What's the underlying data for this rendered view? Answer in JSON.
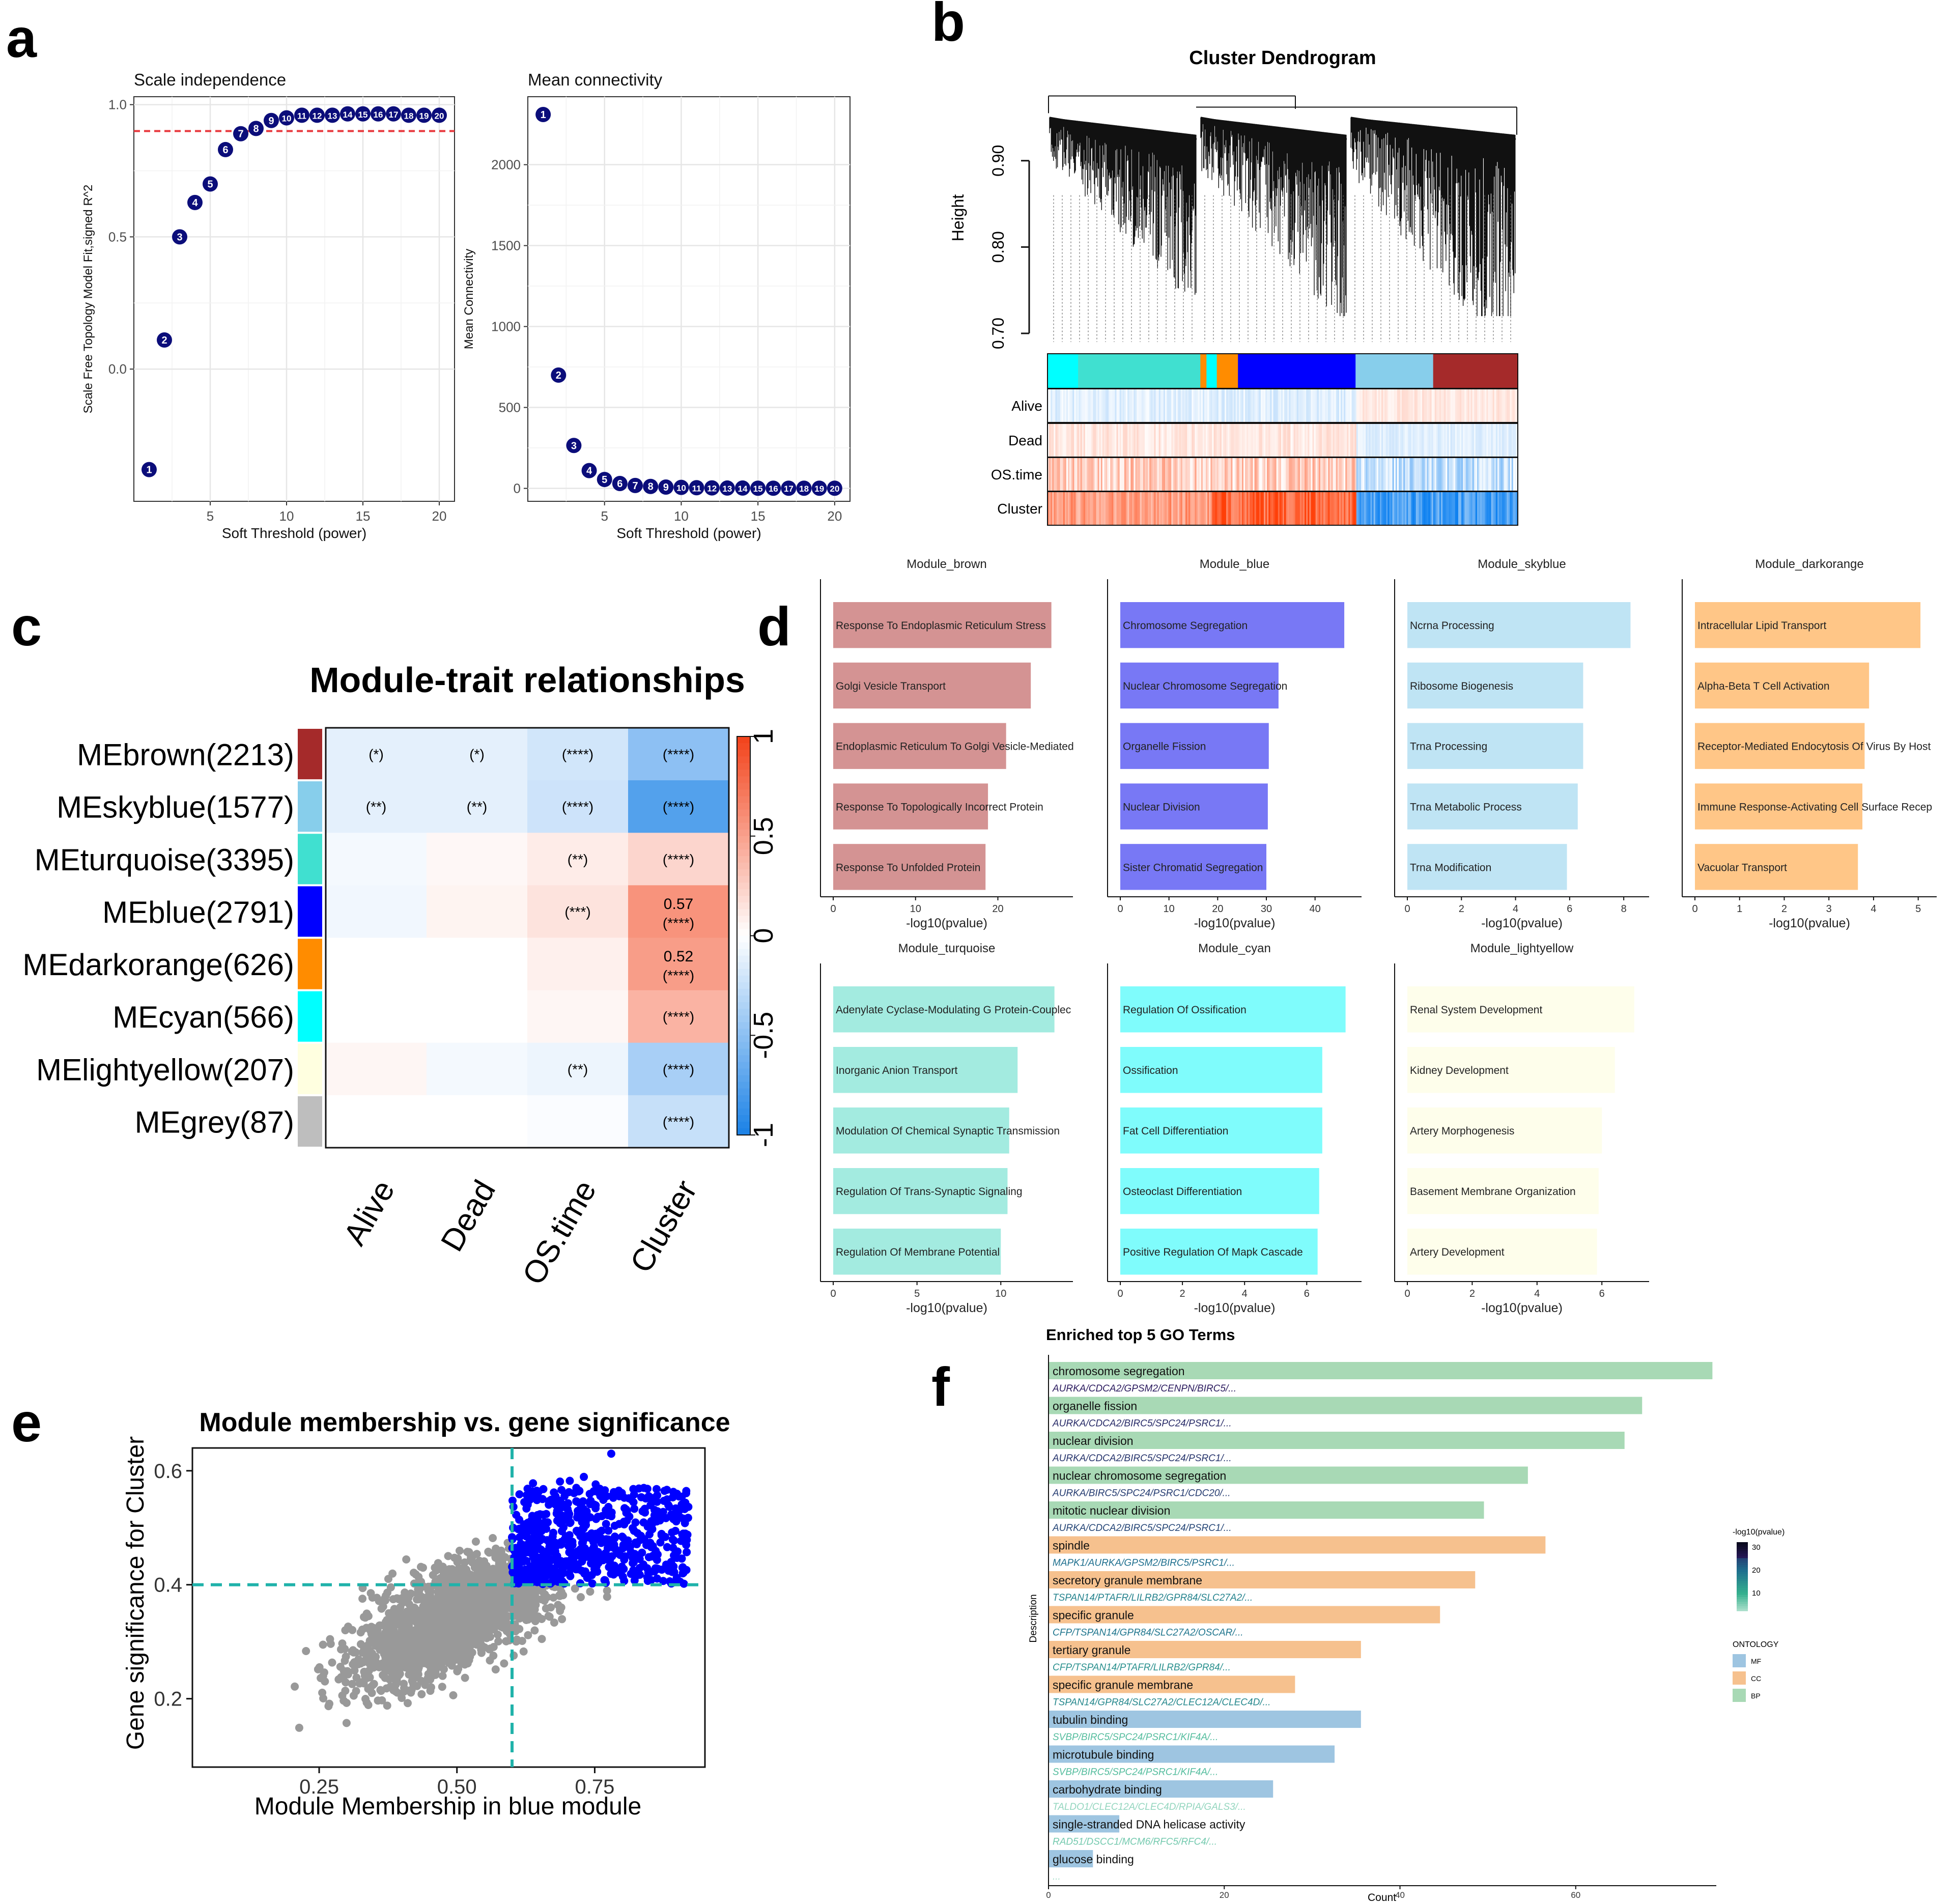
{
  "panel_letters": [
    "a",
    "b",
    "c",
    "d",
    "e",
    "f"
  ],
  "chart_data": [
    {
      "id": "a1",
      "type": "scatter",
      "title": "Scale independence",
      "xlabel": "Soft Threshold (power)",
      "ylabel": "Scale Free Topology Model Fit,signed R^2",
      "xlim": [
        0,
        21
      ],
      "ylim": [
        -0.5,
        1.03
      ],
      "xticks": [
        5,
        10,
        15,
        20
      ],
      "yticks": [
        0.0,
        0.5,
        1.0
      ],
      "ytick_labels": [
        "0.0",
        "0.5",
        "1.0"
      ],
      "hline": 0.9,
      "point_color": "#0b0d7a",
      "x": [
        1,
        2,
        3,
        4,
        5,
        6,
        7,
        8,
        9,
        10,
        11,
        12,
        13,
        14,
        15,
        16,
        17,
        18,
        19,
        20
      ],
      "y": [
        -0.38,
        0.11,
        0.5,
        0.63,
        0.7,
        0.83,
        0.89,
        0.91,
        0.94,
        0.95,
        0.96,
        0.96,
        0.96,
        0.965,
        0.965,
        0.965,
        0.965,
        0.96,
        0.96,
        0.96
      ],
      "labels": [
        "1",
        "2",
        "3",
        "4",
        "5",
        "6",
        "7",
        "8",
        "9",
        "10",
        "11",
        "12",
        "13",
        "14",
        "15",
        "16",
        "17",
        "18",
        "19",
        "20"
      ]
    },
    {
      "id": "a2",
      "type": "scatter",
      "title": "Mean connectivity",
      "xlabel": "Soft Threshold (power)",
      "ylabel": "Mean Connectivity",
      "xlim": [
        0,
        21
      ],
      "ylim": [
        -80,
        2420
      ],
      "xticks": [
        5,
        10,
        15,
        20
      ],
      "yticks": [
        0,
        500,
        1000,
        1500,
        2000
      ],
      "point_color": "#0b0d7a",
      "x": [
        1,
        2,
        3,
        4,
        5,
        6,
        7,
        8,
        9,
        10,
        11,
        12,
        13,
        14,
        15,
        16,
        17,
        18,
        19,
        20
      ],
      "y": [
        2310,
        700,
        265,
        110,
        55,
        30,
        18,
        12,
        8,
        6,
        4,
        3,
        2,
        2,
        1,
        1,
        1,
        1,
        1,
        1
      ],
      "labels": [
        "1",
        "2",
        "3",
        "4",
        "5",
        "6",
        "7",
        "8",
        "9",
        "10",
        "11",
        "12",
        "13",
        "14",
        "15",
        "16",
        "17",
        "18",
        "19",
        "20"
      ]
    },
    {
      "id": "b",
      "type": "dendrogram",
      "title": "Cluster Dendrogram",
      "ylabel": "Height",
      "yticks": [
        0.7,
        0.8,
        0.9
      ],
      "ytick_labels": [
        "0.70",
        "0.80",
        "0.90"
      ],
      "ylim": [
        0.69,
        0.98
      ],
      "module_colors": [
        {
          "module": "cyan",
          "color": "#00ffff",
          "start": 0.0,
          "end": 0.065
        },
        {
          "module": "turquoise",
          "color": "#40e0d0",
          "start": 0.065,
          "end": 0.325
        },
        {
          "module": "darkorange",
          "color": "#ff8c00",
          "start": 0.325,
          "end": 0.338
        },
        {
          "module": "cyan",
          "color": "#00ffff",
          "start": 0.338,
          "end": 0.36
        },
        {
          "module": "darkorange",
          "color": "#ff8c00",
          "start": 0.36,
          "end": 0.405
        },
        {
          "module": "blue",
          "color": "#0000ff",
          "start": 0.405,
          "end": 0.655
        },
        {
          "module": "skyblue",
          "color": "#87ceeb",
          "start": 0.655,
          "end": 0.66
        },
        {
          "module": "skyblue",
          "color": "#87ceeb",
          "start": 0.66,
          "end": 0.82
        },
        {
          "module": "brown",
          "color": "#a52a2a",
          "start": 0.82,
          "end": 1.0
        }
      ],
      "trait_rows": [
        "Alive",
        "Dead",
        "OS.time",
        "Cluster"
      ]
    },
    {
      "id": "c",
      "type": "heatmap",
      "title": "Module-trait relationships",
      "rows": [
        "MEbrown(2213)",
        "MEskyblue(1577)",
        "MEturquoise(3395)",
        "MEblue(2791)",
        "MEdarkorange(626)",
        "MEcyan(566)",
        "MElightyellow(207)",
        "MEgrey(87)"
      ],
      "row_colors": [
        "#a52a2a",
        "#87ceeb",
        "#40e0d0",
        "#0000ff",
        "#ff8c00",
        "#00ffff",
        "#ffffe0",
        "#bebebe"
      ],
      "columns": [
        "Alive",
        "Dead",
        "OS.time",
        "Cluster"
      ],
      "values": [
        [
          -0.12,
          -0.12,
          -0.2,
          -0.5
        ],
        [
          -0.12,
          -0.12,
          -0.22,
          -0.75
        ],
        [
          -0.05,
          0.04,
          0.1,
          0.22
        ],
        [
          -0.06,
          0.06,
          0.15,
          0.57
        ],
        [
          0.0,
          0.0,
          0.08,
          0.52
        ],
        [
          0.0,
          0.0,
          0.05,
          0.4
        ],
        [
          0.05,
          -0.05,
          -0.08,
          -0.38
        ],
        [
          0.0,
          0.0,
          -0.02,
          -0.25
        ]
      ],
      "cell_labels": [
        [
          "(*)",
          "(*)",
          "(****)",
          "(****)"
        ],
        [
          "(**)",
          "(**)",
          "(****)",
          "(****)"
        ],
        [
          "",
          "",
          "(**)",
          "(****)"
        ],
        [
          "",
          "",
          "(***)",
          "0.57\n(****)"
        ],
        [
          "",
          "",
          "",
          "0.52\n(****)"
        ],
        [
          "",
          "",
          "",
          "(****)"
        ],
        [
          "",
          "",
          "(**)",
          "(****)"
        ],
        [
          "",
          "",
          "",
          "(****)"
        ]
      ],
      "legend_ticks": [
        1,
        0.5,
        0,
        -0.5,
        -1
      ],
      "legend_tick_labels": [
        "1",
        "0.5",
        "0",
        "-0.5",
        "-1"
      ],
      "colors": {
        "low": "#1a81e6",
        "mid": "#ffffff",
        "high": "#f2421a"
      }
    },
    {
      "id": "d",
      "type": "bar",
      "orientation": "horizontal",
      "xlabel": "-log10(pvalue)",
      "facets": [
        {
          "title": "Module_brown",
          "color": "#d49393",
          "xmax": 28.5,
          "xticks": [
            0,
            10,
            20
          ],
          "terms": [
            "Response To Endoplasmic Reticulum Stress",
            "Golgi Vesicle Transport",
            "Endoplasmic Reticulum To Golgi Vesicle-Mediated",
            "Response To Topologically Incorrect Protein",
            "Response To Unfolded Protein"
          ],
          "values": [
            26.5,
            24.0,
            21.0,
            18.8,
            18.5
          ]
        },
        {
          "title": "Module_blue",
          "color": "#7878f5",
          "xmax": 48.5,
          "xticks": [
            0,
            10,
            20,
            30,
            40
          ],
          "terms": [
            "Chromosome Segregation",
            "Nuclear Chromosome Segregation",
            "Organelle Fission",
            "Nuclear Division",
            "Sister Chromatid Segregation"
          ],
          "values": [
            46.0,
            32.5,
            30.5,
            30.3,
            30.0
          ]
        },
        {
          "title": "Module_skyblue",
          "color": "#bfe4f4",
          "xmax": 8.75,
          "xticks": [
            0,
            2,
            4,
            6,
            8
          ],
          "terms": [
            "Ncrna Processing",
            "Ribosome Biogenesis",
            "Trna Processing",
            "Trna Metabolic Process",
            "Trna Modification"
          ],
          "values": [
            8.25,
            6.5,
            6.5,
            6.3,
            5.9
          ]
        },
        {
          "title": "Module_darkorange",
          "color": "#ffc687",
          "xmax": 5.3,
          "xticks": [
            0,
            1,
            2,
            3,
            4,
            5
          ],
          "terms": [
            "Intracellular Lipid Transport",
            "Alpha-Beta T Cell Activation",
            "Receptor-Mediated Endocytosis Of Virus By Host",
            "Immune Response-Activating Cell Surface Recep",
            "Vacuolar Transport"
          ],
          "values": [
            5.05,
            3.9,
            3.8,
            3.75,
            3.65
          ]
        },
        {
          "title": "Module_turquoise",
          "color": "#a3ebe0",
          "xmax": 14.0,
          "xticks": [
            0,
            5,
            10
          ],
          "terms": [
            "Adenylate Cyclase-Modulating G Protein-Couplec",
            "Inorganic Anion Transport",
            "Modulation Of Chemical Synaptic Transmission",
            "Regulation Of Trans-Synaptic Signaling",
            "Regulation Of Membrane Potential"
          ],
          "values": [
            13.2,
            11.0,
            10.5,
            10.4,
            10.0
          ]
        },
        {
          "title": "Module_cyan",
          "color": "#7ffcfc",
          "xmax": 7.6,
          "xticks": [
            0,
            2,
            4,
            6
          ],
          "terms": [
            "Regulation Of Ossification",
            "Ossification",
            "Fat Cell Differentiation",
            "Osteoclast Differentiation",
            "Positive Regulation Of Mapk Cascade"
          ],
          "values": [
            7.25,
            6.5,
            6.5,
            6.4,
            6.35
          ]
        },
        {
          "title": "Module_lightyellow",
          "color": "#fefeeb",
          "xmax": 7.3,
          "xticks": [
            0,
            2,
            4,
            6
          ],
          "terms": [
            "Renal System Development",
            "Kidney Development",
            "Artery Morphogenesis",
            "Basement Membrane Organization",
            "Artery Development"
          ],
          "values": [
            7.0,
            6.4,
            6.0,
            5.9,
            5.85
          ]
        }
      ]
    },
    {
      "id": "e",
      "type": "scatter",
      "title": "Module membership vs. gene significance",
      "xlabel": "Module Membership in blue module",
      "ylabel": "Gene significance for Cluster",
      "xlim": [
        0.02,
        0.95
      ],
      "ylim": [
        0.08,
        0.64
      ],
      "xticks": [
        0.25,
        0.5,
        0.75
      ],
      "xtick_labels": [
        "0.25",
        "0.50",
        "0.75"
      ],
      "yticks": [
        0.2,
        0.4,
        0.6
      ],
      "ytick_labels": [
        "0.2",
        "0.4",
        "0.6"
      ],
      "vline": 0.6,
      "hline": 0.4,
      "colors": {
        "selected": "#0000ff",
        "other": "#999999",
        "threshold": "#20b2aa"
      },
      "points_summary": {
        "n_points": 2791,
        "center_x": 0.5,
        "center_y": 0.35,
        "max_y": 0.63
      }
    },
    {
      "id": "f",
      "type": "bar",
      "orientation": "horizontal",
      "title": "Enriched top 5 GO Terms",
      "xlabel": "Count",
      "ylabel": "Description",
      "xlim": [
        0,
        76
      ],
      "xticks": [
        0,
        20,
        40,
        60
      ],
      "terms": [
        "chromosome segregation",
        "organelle fission",
        "nuclear division",
        "nuclear chromosome segregation",
        "mitotic nuclear division",
        "spindle",
        "secretory granule membrane",
        "specific granule",
        "tertiary granule",
        "specific granule membrane",
        "tubulin binding",
        "microtubule binding",
        "carbohydrate binding",
        "single-stranded DNA helicase activity",
        "glucose binding"
      ],
      "genes": [
        "AURKA/CDCA2/GPSM2/CENPN/BIRC5/...",
        "AURKA/CDCA2/BIRC5/SPC24/PSRC1/...",
        "AURKA/CDCA2/BIRC5/SPC24/PSRC1/...",
        "AURKA/BIRC5/SPC24/PSRC1/CDC20/...",
        "AURKA/CDCA2/BIRC5/SPC24/PSRC1/...",
        "MAPK1/AURKA/GPSM2/BIRC5/PSRC1/...",
        "TSPAN14/PTAFR/LILRB2/GPR84/SLC27A2/...",
        "CFP/TSPAN14/GPR84/SLC27A2/OSCAR/...",
        "CFP/TSPAN14/PTAFR/LILRB2/GPR84/...",
        "TSPAN14/GPR84/SLC27A2/CLEC12A/CLEC4D/...",
        "SVBP/BIRC5/SPC24/PSRC1/KIF4A/...",
        "SVBP/BIRC5/SPC24/PSRC1/KIF4A/...",
        "TALDO1/CLEC12A/CLEC4D/RPIA/GALS3/...",
        "RAD51/DSCC1/MCM6/RFC5/RFC4/...",
        "..."
      ],
      "values": [
        75.5,
        67.5,
        65.5,
        54.5,
        49.5,
        56.5,
        48.5,
        44.5,
        35.5,
        28,
        35.5,
        32.5,
        25.5,
        8,
        5
      ],
      "ontology": [
        "BP",
        "BP",
        "BP",
        "BP",
        "BP",
        "CC",
        "CC",
        "CC",
        "CC",
        "CC",
        "MF",
        "MF",
        "MF",
        "MF",
        "MF"
      ],
      "gene_pvalue": [
        30,
        28,
        27,
        26,
        25,
        20,
        17,
        19,
        15,
        16,
        8,
        8,
        4,
        6,
        3
      ],
      "ontology_colors": {
        "MF": "#9ec5e1",
        "CC": "#f6c18e",
        "BP": "#a8d9b5"
      },
      "legend": {
        "color_title": "-log10(pvalue)",
        "color_ticks": [
          30,
          20,
          10
        ],
        "ontology_title": "ONTOLOGY",
        "ontology_order": [
          "MF",
          "CC",
          "BP"
        ]
      }
    }
  ]
}
